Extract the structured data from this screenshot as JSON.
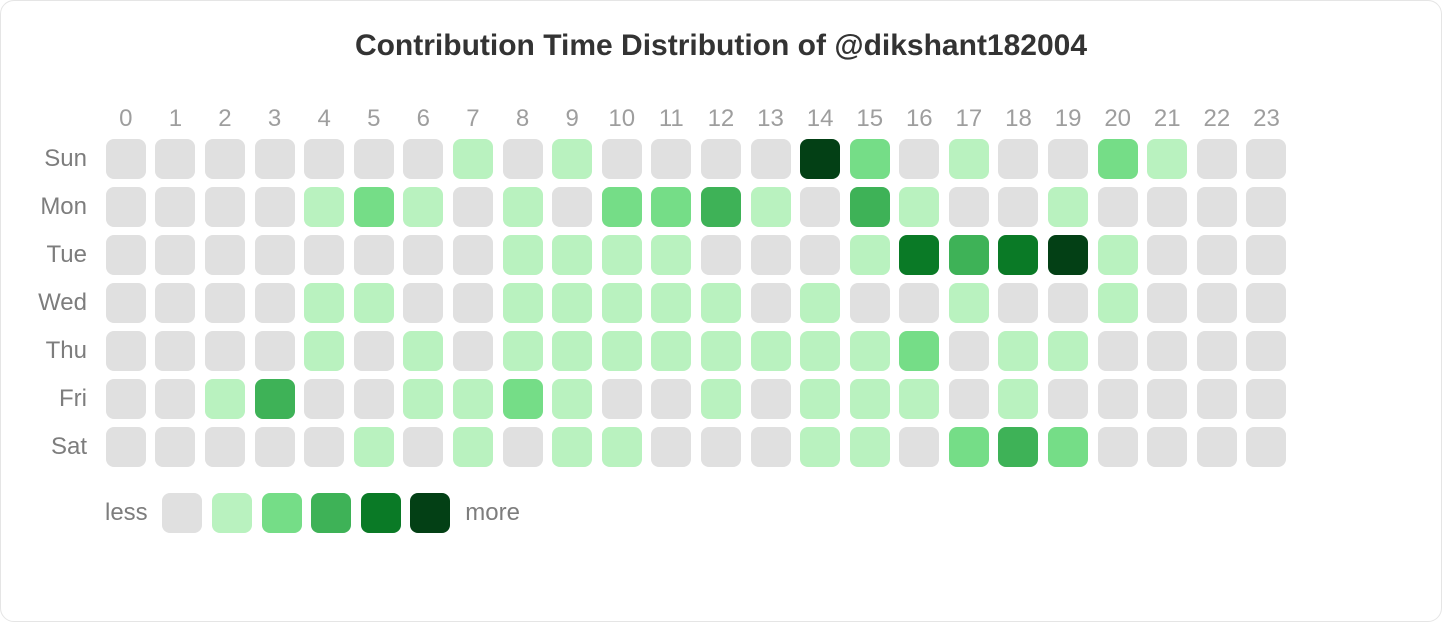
{
  "title": "Contribution Time Distribution of @dikshant182004",
  "hours": [
    "0",
    "1",
    "2",
    "3",
    "4",
    "5",
    "6",
    "7",
    "8",
    "9",
    "10",
    "11",
    "12",
    "13",
    "14",
    "15",
    "16",
    "17",
    "18",
    "19",
    "20",
    "21",
    "22",
    "23"
  ],
  "days": [
    "Sun",
    "Mon",
    "Tue",
    "Wed",
    "Thu",
    "Fri",
    "Sat"
  ],
  "palette": {
    "0": "#e0e0e0",
    "1": "#b9f2bf",
    "2": "#75dd87",
    "3": "#3eb257",
    "4": "#0a7a26",
    "5": "#034015"
  },
  "grid": [
    [
      0,
      0,
      0,
      0,
      0,
      0,
      0,
      1,
      0,
      1,
      0,
      0,
      0,
      0,
      5,
      2,
      0,
      1,
      0,
      0,
      2,
      1,
      0,
      0
    ],
    [
      0,
      0,
      0,
      0,
      1,
      2,
      1,
      0,
      1,
      0,
      2,
      2,
      3,
      1,
      0,
      3,
      1,
      0,
      0,
      1,
      0,
      0,
      0,
      0
    ],
    [
      0,
      0,
      0,
      0,
      0,
      0,
      0,
      0,
      1,
      1,
      1,
      1,
      0,
      0,
      0,
      1,
      4,
      3,
      4,
      5,
      1,
      0,
      0,
      0
    ],
    [
      0,
      0,
      0,
      0,
      1,
      1,
      0,
      0,
      1,
      1,
      1,
      1,
      1,
      0,
      1,
      0,
      0,
      1,
      0,
      0,
      1,
      0,
      0,
      0
    ],
    [
      0,
      0,
      0,
      0,
      1,
      0,
      1,
      0,
      1,
      1,
      1,
      1,
      1,
      1,
      1,
      1,
      2,
      0,
      1,
      1,
      0,
      0,
      0,
      0
    ],
    [
      0,
      0,
      1,
      3,
      0,
      0,
      1,
      1,
      2,
      1,
      0,
      0,
      1,
      0,
      1,
      1,
      1,
      0,
      1,
      0,
      0,
      0,
      0,
      0
    ],
    [
      0,
      0,
      0,
      0,
      0,
      1,
      0,
      1,
      0,
      1,
      1,
      0,
      0,
      0,
      1,
      1,
      0,
      2,
      3,
      2,
      0,
      0,
      0,
      0
    ]
  ],
  "legend": {
    "less": "less",
    "more": "more",
    "levels": [
      0,
      1,
      2,
      3,
      4,
      5
    ]
  },
  "style": {
    "card_border": "#e5e5e5",
    "background": "#ffffff",
    "title_color": "#333333",
    "label_color": "#7d7d7d",
    "hour_label_color": "#9e9e9e",
    "title_fontsize": 30,
    "label_fontsize": 24,
    "cell_size": 40,
    "cell_radius": 8,
    "cell_gap": 9.6
  }
}
